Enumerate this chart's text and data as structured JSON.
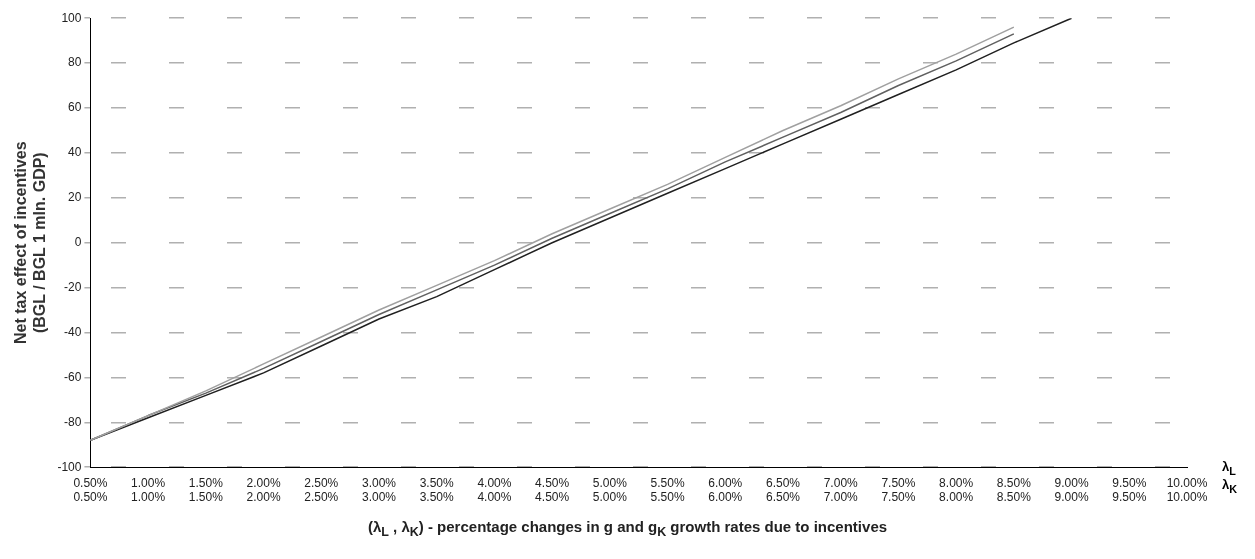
{
  "chart_data": {
    "type": "line",
    "xlabel": "(λ$_{L}$ , λ$_{K}$) - percentage changes in  g and g$_{K}$ growth rates due to incentives",
    "ylabel": "Net tax effect of incentives\n(BGL / BGL 1 mln. GDP)",
    "annotations": [
      "λ$_{L}$",
      "λ$_{K}$"
    ],
    "categories": [
      "0.50%\n0.50%",
      "1.00%\n1.00%",
      "1.50%\n1.50%",
      "2.00%\n2.00%",
      "2.50%\n2.50%",
      "3.00%\n3.00%",
      "3.50%\n3.50%",
      "4.00%\n4.00%",
      "4.50%\n4.50%",
      "5.00%\n5.00%",
      "5.50%\n5.50%",
      "6.00%\n6.00%",
      "6.50%\n6.50%",
      "7.00%\n7.00%",
      "7.50%\n7.50%",
      "8.00%\n8.00%",
      "8.50%\n8.50%",
      "9.00%\n9.00%",
      "9.50%\n9.50%",
      "10.00%\n10.00%"
    ],
    "series": [
      {
        "color": "#a0a0a0",
        "values": [
          -88,
          -77,
          -66,
          -54,
          -42,
          -30,
          -19,
          -8,
          4,
          15,
          26,
          38,
          50,
          61,
          73,
          84,
          96,
          null,
          null,
          null
        ]
      },
      {
        "color": "#606060",
        "values": [
          -88,
          -77,
          -67,
          -56,
          -44,
          -32,
          -21,
          -10,
          2,
          13,
          24,
          36,
          47,
          58,
          70,
          81,
          93,
          null,
          null,
          null
        ]
      },
      {
        "color": "#202020",
        "values": [
          -88,
          -78,
          -68,
          -58,
          -46,
          -34,
          -24,
          -12,
          0,
          11,
          22,
          33,
          44,
          55,
          66,
          77,
          89,
          100,
          null,
          null
        ]
      }
    ],
    "ylim": [
      -100,
      100
    ],
    "yticks": [
      -100,
      -80,
      -60,
      -40,
      -20,
      0,
      20,
      40,
      60,
      80,
      100
    ],
    "grid": "y",
    "legend": false,
    "marker": "none",
    "line_style": "solid"
  }
}
